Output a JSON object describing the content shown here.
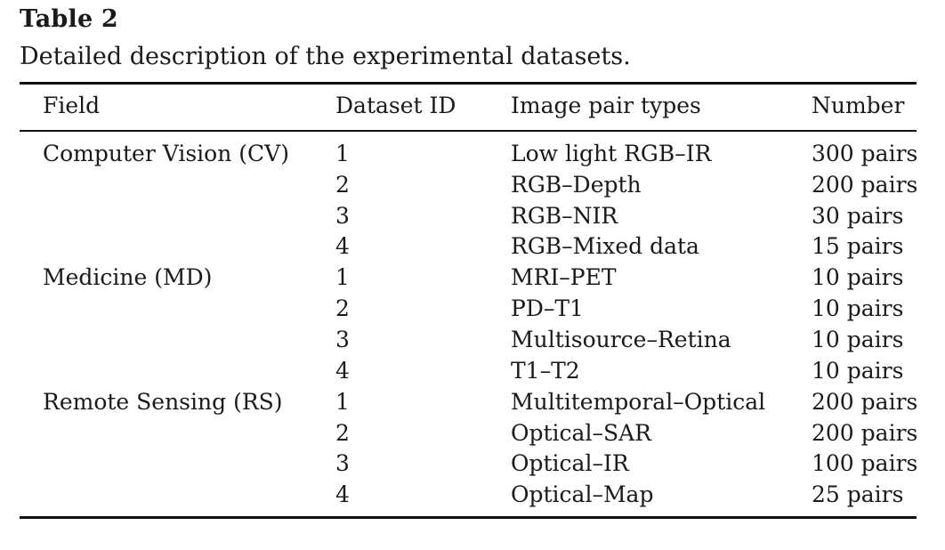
{
  "title": "Table 2",
  "caption": "Detailed description of the experimental datasets.",
  "columns": [
    "Field",
    "Dataset ID",
    "Image pair types",
    "Number"
  ],
  "rows": [
    {
      "field": "Computer Vision (CV)",
      "id": "1",
      "type": "Low light RGB–IR",
      "number": "300 pairs"
    },
    {
      "field": "",
      "id": "2",
      "type": "RGB–Depth",
      "number": "200 pairs"
    },
    {
      "field": "",
      "id": "3",
      "type": "RGB–NIR",
      "number": "30 pairs"
    },
    {
      "field": "",
      "id": "4",
      "type": "RGB–Mixed data",
      "number": "15 pairs"
    },
    {
      "field": "Medicine (MD)",
      "id": "1",
      "type": "MRI–PET",
      "number": "10 pairs"
    },
    {
      "field": "",
      "id": "2",
      "type": "PD–T1",
      "number": "10 pairs"
    },
    {
      "field": "",
      "id": "3",
      "type": "Multisource–Retina",
      "number": "10 pairs"
    },
    {
      "field": "",
      "id": "4",
      "type": "T1–T2",
      "number": "10 pairs"
    },
    {
      "field": "Remote Sensing (RS)",
      "id": "1",
      "type": "Multitemporal–Optical",
      "number": "200 pairs"
    },
    {
      "field": "",
      "id": "2",
      "type": "Optical–SAR",
      "number": "200 pairs"
    },
    {
      "field": "",
      "id": "3",
      "type": "Optical–IR",
      "number": "100 pairs"
    },
    {
      "field": "",
      "id": "4",
      "type": "Optical–Map",
      "number": "25 pairs"
    }
  ]
}
